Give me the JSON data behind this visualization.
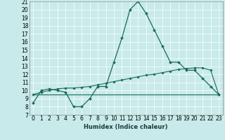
{
  "title": "",
  "xlabel": "Humidex (Indice chaleur)",
  "bg_color": "#c8eaea",
  "line_color": "#1a6b5a",
  "xlim": [
    -0.5,
    23.5
  ],
  "ylim": [
    7,
    21
  ],
  "yticks": [
    7,
    8,
    9,
    10,
    11,
    12,
    13,
    14,
    15,
    16,
    17,
    18,
    19,
    20,
    21
  ],
  "xticks": [
    0,
    1,
    2,
    3,
    4,
    5,
    6,
    7,
    8,
    9,
    10,
    11,
    12,
    13,
    14,
    15,
    16,
    17,
    18,
    19,
    20,
    21,
    22,
    23
  ],
  "line1_x": [
    0,
    1,
    2,
    3,
    4,
    5,
    6,
    7,
    8,
    9,
    10,
    11,
    12,
    13,
    14,
    15,
    16,
    17,
    18,
    19,
    20,
    21,
    22,
    23
  ],
  "line1_y": [
    8.5,
    10.0,
    10.2,
    10.0,
    9.8,
    8.0,
    8.0,
    9.0,
    10.5,
    10.5,
    13.5,
    16.5,
    20.0,
    21.0,
    19.5,
    17.5,
    15.5,
    13.5,
    13.5,
    12.5,
    12.5,
    11.5,
    10.5,
    9.5
  ],
  "line2_x": [
    0,
    23
  ],
  "line2_y": [
    9.5,
    9.5
  ],
  "line3_x": [
    0,
    1,
    2,
    3,
    4,
    5,
    6,
    7,
    8,
    9,
    10,
    11,
    12,
    13,
    14,
    15,
    16,
    17,
    18,
    19,
    20,
    21,
    22,
    23
  ],
  "line3_y": [
    9.5,
    9.8,
    10.0,
    10.2,
    10.3,
    10.3,
    10.4,
    10.5,
    10.7,
    10.9,
    11.1,
    11.3,
    11.5,
    11.7,
    11.9,
    12.0,
    12.2,
    12.4,
    12.6,
    12.7,
    12.8,
    12.8,
    12.5,
    9.5
  ],
  "tick_fontsize": 5.5,
  "xlabel_fontsize": 6.0
}
